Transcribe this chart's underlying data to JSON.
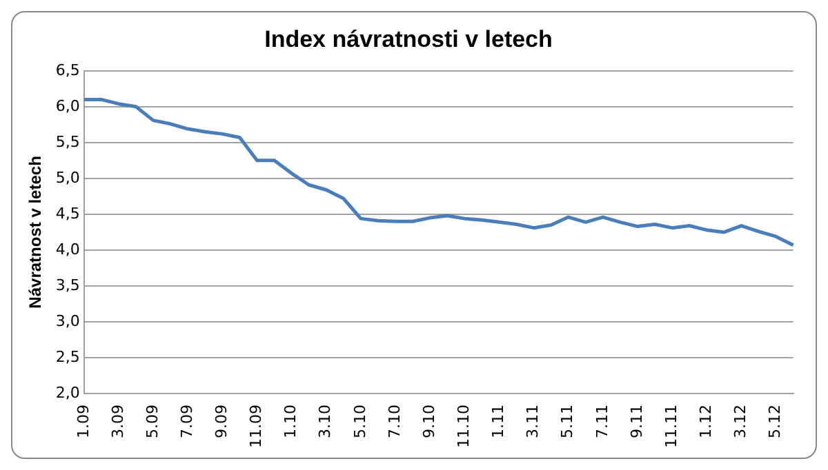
{
  "chart_data": {
    "type": "line",
    "title": "Index návratnosti v letech",
    "ylabel": "Návratnost v letech",
    "categories": [
      "1.09",
      null,
      "3.09",
      null,
      "5.09",
      null,
      "7.09",
      null,
      "9.09",
      null,
      "11.09",
      null,
      "1.10",
      null,
      "3.10",
      null,
      "5.10",
      null,
      "7.10",
      null,
      "9.10",
      null,
      "11.10",
      null,
      "1.11",
      null,
      "3.11",
      null,
      "5.11",
      null,
      "7.11",
      null,
      "9.11",
      null,
      "11.11",
      null,
      "1.12",
      null,
      "3.12",
      null,
      "5.12",
      null
    ],
    "series": [
      {
        "color": "#4a7ebb",
        "values": [
          6.1,
          6.1,
          6.04,
          6.0,
          5.81,
          5.76,
          5.69,
          5.65,
          5.62,
          5.57,
          5.25,
          5.25,
          5.07,
          4.91,
          4.84,
          4.72,
          4.44,
          4.41,
          4.4,
          4.4,
          4.45,
          4.48,
          4.44,
          4.42,
          4.39,
          4.36,
          4.31,
          4.35,
          4.46,
          4.39,
          4.46,
          4.39,
          4.33,
          4.36,
          4.31,
          4.34,
          4.28,
          4.25,
          4.34,
          4.26,
          4.19,
          4.07
        ]
      }
    ],
    "ylim": [
      2.0,
      6.5
    ],
    "yticks": [
      {
        "value": 2.0,
        "label": "2,0"
      },
      {
        "value": 2.5,
        "label": "2,5"
      },
      {
        "value": 3.0,
        "label": "3,0"
      },
      {
        "value": 3.5,
        "label": "3,5"
      },
      {
        "value": 4.0,
        "label": "4,0"
      },
      {
        "value": 4.5,
        "label": "4,5"
      },
      {
        "value": 5.0,
        "label": "5,0"
      },
      {
        "value": 5.5,
        "label": "5,5"
      },
      {
        "value": 6.0,
        "label": "6,0"
      },
      {
        "value": 6.5,
        "label": "6,5"
      }
    ],
    "grid": "y",
    "legend": false,
    "marker": "none",
    "line_style": "solid"
  }
}
